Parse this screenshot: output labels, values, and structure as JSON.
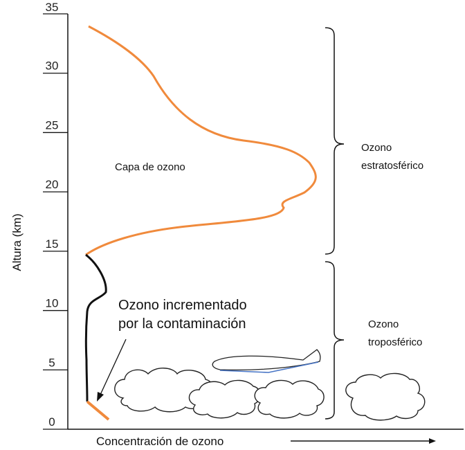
{
  "chart_data": {
    "type": "line",
    "y_axis": {
      "label": "Altura (km)",
      "range": [
        0,
        35
      ],
      "ticks": [
        "0",
        "5",
        "10",
        "15",
        "20",
        "25",
        "30",
        "35"
      ]
    },
    "x_axis": {
      "label": "Concentración de ozono"
    },
    "labels": {
      "ozone_layer": "Capa de ozono",
      "stratospheric_line1": "Ozono",
      "stratospheric_line2": "estratosférico",
      "tropospheric_line1": "Ozono",
      "tropospheric_line2": "troposférico",
      "pollution_line1": "Ozono incrementado",
      "pollution_line2": "por la contaminación"
    },
    "colors": {
      "stratospheric_curve": "#F08A3C",
      "tropospheric_curve": "#111111",
      "surface_segment": "#F08A3C",
      "airplane_underside": "#4472C4"
    },
    "icons": [
      "cloud-icon",
      "cloud-icon",
      "cloud-icon",
      "cloud-icon",
      "airplane-icon",
      "arrow-right-icon",
      "brace-icon"
    ]
  }
}
